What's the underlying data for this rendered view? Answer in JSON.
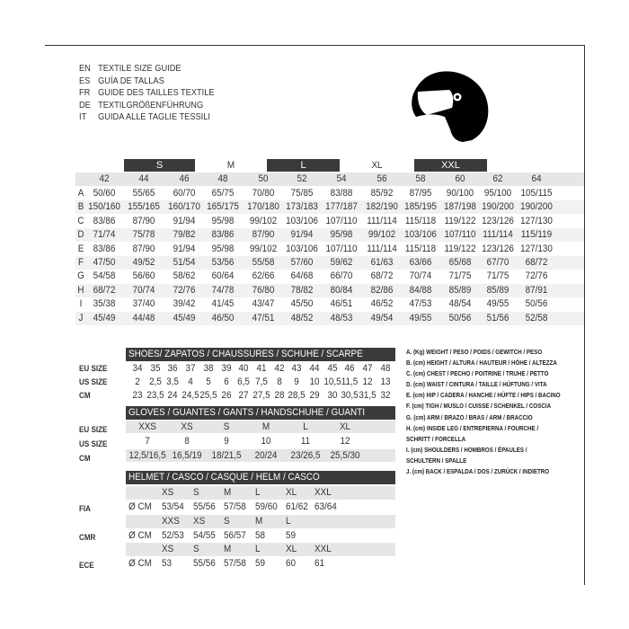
{
  "titles": [
    {
      "lang": "EN",
      "text": "TEXTILE SIZE GUIDE"
    },
    {
      "lang": "ES",
      "text": "GUÍA DE TALLAS"
    },
    {
      "lang": "FR",
      "text": "GUIDE DES TAILLES TEXTILE"
    },
    {
      "lang": "DE",
      "text": "TEXTILGRÖßENFÜHRUNG"
    },
    {
      "lang": "IT",
      "text": "GUIDA ALLE TAGLIE TESSILI"
    }
  ],
  "icon": "helmet-icon",
  "textile": {
    "size_groups": [
      {
        "label": "S",
        "dark": true
      },
      {
        "label": "M",
        "dark": false
      },
      {
        "label": "L",
        "dark": true
      },
      {
        "label": "XL",
        "dark": false
      },
      {
        "label": "XXL",
        "dark": true
      }
    ],
    "sizes": [
      "42",
      "44",
      "46",
      "48",
      "50",
      "52",
      "54",
      "56",
      "58",
      "60",
      "62",
      "64"
    ],
    "rows": [
      {
        "key": "A",
        "values": [
          "50/60",
          "55/65",
          "60/70",
          "65/75",
          "70/80",
          "75/85",
          "83/88",
          "85/92",
          "87/95",
          "90/100",
          "95/100",
          "105/115"
        ]
      },
      {
        "key": "B",
        "values": [
          "150/160",
          "155/165",
          "160/170",
          "165/175",
          "170/180",
          "173/183",
          "177/187",
          "182/190",
          "185/195",
          "187/198",
          "190/200",
          "190/200"
        ]
      },
      {
        "key": "C",
        "values": [
          "83/86",
          "87/90",
          "91/94",
          "95/98",
          "99/102",
          "103/106",
          "107/110",
          "111/114",
          "115/118",
          "119/122",
          "123/126",
          "127/130"
        ]
      },
      {
        "key": "D",
        "values": [
          "71/74",
          "75/78",
          "79/82",
          "83/86",
          "87/90",
          "91/94",
          "95/98",
          "99/102",
          "103/106",
          "107/110",
          "111/114",
          "115/119"
        ]
      },
      {
        "key": "E",
        "values": [
          "83/86",
          "87/90",
          "91/94",
          "95/98",
          "99/102",
          "103/106",
          "107/110",
          "111/114",
          "115/118",
          "119/122",
          "123/126",
          "127/130"
        ]
      },
      {
        "key": "F",
        "values": [
          "47/50",
          "49/52",
          "51/54",
          "53/56",
          "55/58",
          "57/60",
          "59/62",
          "61/63",
          "63/66",
          "65/68",
          "67/70",
          "68/72"
        ]
      },
      {
        "key": "G",
        "values": [
          "54/58",
          "56/60",
          "58/62",
          "60/64",
          "62/66",
          "64/68",
          "66/70",
          "68/72",
          "70/74",
          "71/75",
          "71/75",
          "72/76"
        ]
      },
      {
        "key": "H",
        "values": [
          "68/72",
          "70/74",
          "72/76",
          "74/78",
          "76/80",
          "78/82",
          "80/84",
          "82/86",
          "84/88",
          "85/89",
          "85/89",
          "87/91"
        ]
      },
      {
        "key": "I",
        "values": [
          "35/38",
          "37/40",
          "39/42",
          "41/45",
          "43/47",
          "45/50",
          "46/51",
          "46/52",
          "47/53",
          "48/54",
          "49/55",
          "50/56"
        ]
      },
      {
        "key": "J",
        "values": [
          "45/49",
          "44/48",
          "45/49",
          "46/50",
          "47/51",
          "48/52",
          "48/53",
          "49/54",
          "49/55",
          "50/56",
          "51/56",
          "52/58"
        ]
      }
    ]
  },
  "shoes": {
    "title": "SHOES/ ZAPATOS / CHAUSSURES / SCHUHE / SCARPE",
    "rows": [
      {
        "label": "EU SIZE",
        "values": [
          "34",
          "35",
          "36",
          "37",
          "38",
          "39",
          "40",
          "41",
          "42",
          "43",
          "44",
          "45",
          "46",
          "47",
          "48"
        ]
      },
      {
        "label": "US SIZE",
        "values": [
          "2",
          "2,5",
          "3,5",
          "4",
          "5",
          "6",
          "6,5",
          "7,5",
          "8",
          "9",
          "10",
          "10,5",
          "11,5",
          "12",
          "13"
        ]
      },
      {
        "label": "CM",
        "values": [
          "23",
          "23,5",
          "24",
          "24,5",
          "25,5",
          "26",
          "27",
          "27,5",
          "28",
          "28,5",
          "29",
          "30",
          "30,5",
          "31,5",
          "32"
        ]
      }
    ]
  },
  "gloves": {
    "title": "GLOVES / GUANTES / GANTS / HANDSCHUHE / GUANTI",
    "rows": [
      {
        "label": "EU SIZE",
        "values": [
          "XXS",
          "XS",
          "S",
          "M",
          "L",
          "XL"
        ]
      },
      {
        "label": "US SIZE",
        "values": [
          "7",
          "8",
          "9",
          "10",
          "11",
          "12"
        ]
      },
      {
        "label": "CM",
        "values": [
          "12,5/16,5",
          "16,5/19",
          "18/21,5",
          "20/24",
          "23/26,5",
          "25,5/30"
        ]
      }
    ]
  },
  "helmet": {
    "title": "HELMET / CASCO / CASQUE / HELM / CASCO",
    "unit": "Ø CM",
    "standards": [
      {
        "label": "FIA",
        "sizes": [
          "XS",
          "S",
          "M",
          "L",
          "XL",
          "XXL"
        ],
        "values": [
          "53/54",
          "55/56",
          "57/58",
          "59/60",
          "61/62",
          "63/64"
        ]
      },
      {
        "label": "CMR",
        "sizes": [
          "XXS",
          "XS",
          "S",
          "M",
          "L"
        ],
        "values": [
          "52/53",
          "54/55",
          "56/57",
          "58",
          "59"
        ]
      },
      {
        "label": "ECE",
        "sizes": [
          "XS",
          "S",
          "M",
          "L",
          "XL",
          "XXL"
        ],
        "values": [
          "53",
          "55/56",
          "57/58",
          "59",
          "60",
          "61"
        ]
      }
    ]
  },
  "legend": [
    "A. (Kg) WEIGHT / PESO / POIDS / GEWITCH / PESO",
    "B. (cm) HEIGHT / ALTURA / HAUTEUR / HÖHE / ALTEZZA",
    "C. (cm) CHEST / PECHO / POITRINE / TRUHE / PETTO",
    "D. (cm) WAIST / CINTURA / TAILLE / HÜFTUNG / VITA",
    "E. (cm) HIP / CADERA / HANCHE / HÜFTE / HIPS /  BACINO",
    "F.  (cm) TIGH / MUSLO / CUISSE / SCHENKEL / COSCIA",
    "G. (cm) ARM  / BRAZO / BRAS / ARM / BRACCIO",
    "H. (cm) INSIDE LEG / ENTREPIERNA / FOURCHE /",
    "SCHRITT / FORCELLA",
    "I.  (cm) SHOULDERS / HOMBROS / ÉPAULES /",
    "SCHULTERN / SPALLE",
    "J. (cm) BACK / ESPALDA / DOS / ZURÜCK / INDIETRO"
  ]
}
